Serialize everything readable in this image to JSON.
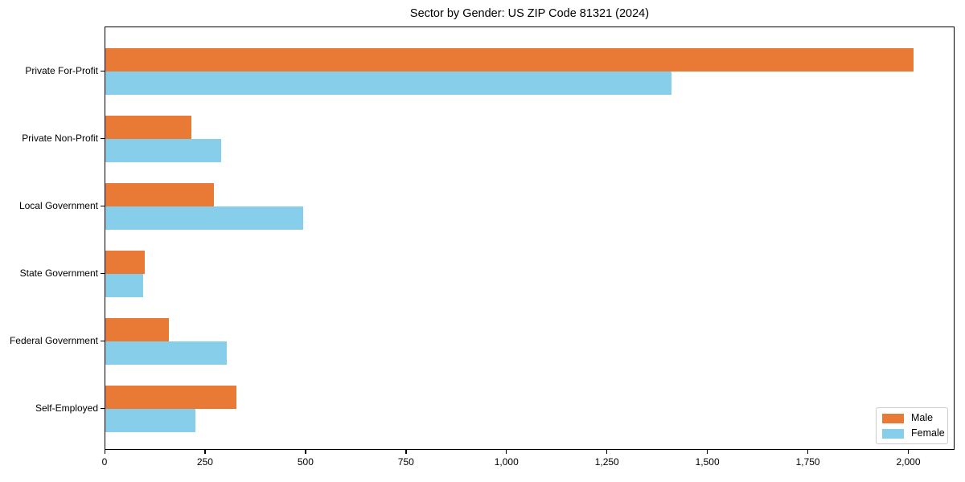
{
  "chart_data": {
    "type": "bar",
    "orientation": "horizontal",
    "title": "Sector by Gender: US ZIP Code 81321 (2024)",
    "xlabel": "",
    "ylabel": "",
    "categories": [
      "Private For-Profit",
      "Private Non-Profit",
      "Local Government",
      "State Government",
      "Federal Government",
      "Self-Employed"
    ],
    "series": [
      {
        "name": "Male",
        "color": "#e87a35",
        "values": [
          2010,
          214,
          270,
          98,
          158,
          326
        ]
      },
      {
        "name": "Female",
        "color": "#87ceeb",
        "values": [
          1408,
          288,
          492,
          95,
          302,
          224
        ]
      }
    ],
    "xlim": [
      0,
      2115
    ],
    "xticks": [
      0,
      250,
      500,
      750,
      1000,
      1250,
      1500,
      1750,
      2000
    ],
    "xtick_labels": [
      "0",
      "250",
      "500",
      "750",
      "1,000",
      "1,250",
      "1,500",
      "1,750",
      "2,000"
    ],
    "grid": false,
    "legend_position": "lower right",
    "background_color": "#ffffff",
    "spine_color": "#000000"
  }
}
